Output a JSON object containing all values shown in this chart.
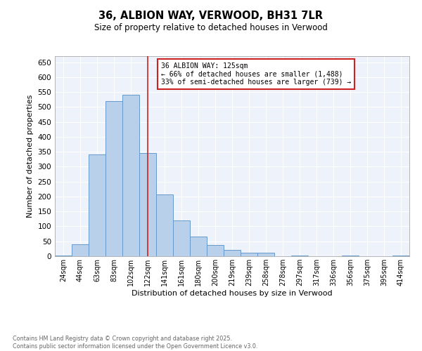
{
  "title": "36, ALBION WAY, VERWOOD, BH31 7LR",
  "subtitle": "Size of property relative to detached houses in Verwood",
  "xlabel": "Distribution of detached houses by size in Verwood",
  "ylabel": "Number of detached properties",
  "bar_labels": [
    "24sqm",
    "44sqm",
    "63sqm",
    "83sqm",
    "102sqm",
    "122sqm",
    "141sqm",
    "161sqm",
    "180sqm",
    "200sqm",
    "219sqm",
    "239sqm",
    "258sqm",
    "278sqm",
    "297sqm",
    "317sqm",
    "336sqm",
    "356sqm",
    "375sqm",
    "395sqm",
    "414sqm"
  ],
  "bar_values": [
    3,
    40,
    340,
    520,
    540,
    345,
    208,
    120,
    65,
    37,
    20,
    12,
    12,
    0,
    2,
    0,
    0,
    2,
    0,
    0,
    2
  ],
  "bar_color": "#b8d0ea",
  "bar_edge_color": "#6699cc",
  "vline_index": 5,
  "vline_color": "#cc2222",
  "annotation_title": "36 ALBION WAY: 125sqm",
  "annotation_line1": "← 66% of detached houses are smaller (1,488)",
  "annotation_line2": "33% of semi-detached houses are larger (739) →",
  "annotation_box_color": "#cc2222",
  "ylim": [
    0,
    670
  ],
  "yticks": [
    0,
    50,
    100,
    150,
    200,
    250,
    300,
    350,
    400,
    450,
    500,
    550,
    600,
    650
  ],
  "footer_line1": "Contains HM Land Registry data © Crown copyright and database right 2025.",
  "footer_line2": "Contains public sector information licensed under the Open Government Licence v3.0.",
  "bg_color": "#eef2fb"
}
